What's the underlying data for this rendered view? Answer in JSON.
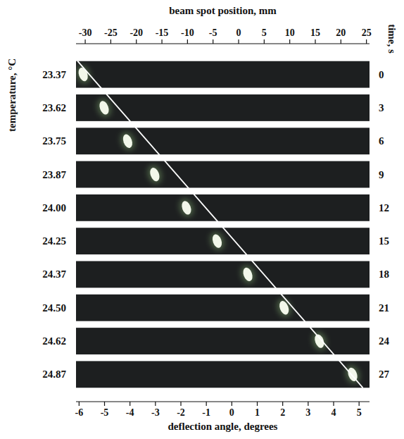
{
  "chart_data": {
    "type": "scatter",
    "xlabel": "beam spot position, mm",
    "x2label": "deflection angle, degrees",
    "ylabel": "temperature, °C",
    "y2label": "time, s",
    "xlim": [
      -31.8,
      25.6
    ],
    "xticks": [
      -30,
      -25,
      -20,
      -15,
      -10,
      -5,
      0,
      5,
      10,
      15,
      20,
      25
    ],
    "x2lim": [
      -6.12,
      5.41
    ],
    "x2ticks": [
      -6,
      -5,
      -4,
      -3,
      -2,
      -1,
      0,
      1,
      2,
      3,
      4,
      5
    ],
    "ylim": [
      -1.5,
      28.5
    ],
    "yticks": [
      0,
      3,
      6,
      9,
      12,
      15,
      18,
      21,
      24,
      27
    ],
    "x": [
      -30.4,
      -26.3,
      -21.7,
      -16.4,
      -10.2,
      -4.2,
      1.8,
      8.9,
      15.8,
      22.3
    ],
    "values": [
      0,
      3,
      6,
      9,
      12,
      15,
      18,
      21,
      24,
      27
    ],
    "temperatures": [
      23.37,
      23.62,
      23.75,
      23.87,
      {
        "value": 24.0,
        "label": "24.00"
      },
      24.25,
      24.37,
      {
        "value": 24.5,
        "label": "24.50"
      },
      24.62,
      24.87
    ],
    "color": "#f2f7ea",
    "fit_x": [
      -31.5,
      24.3
    ],
    "fit_time": [
      -1.2,
      28.2
    ]
  }
}
